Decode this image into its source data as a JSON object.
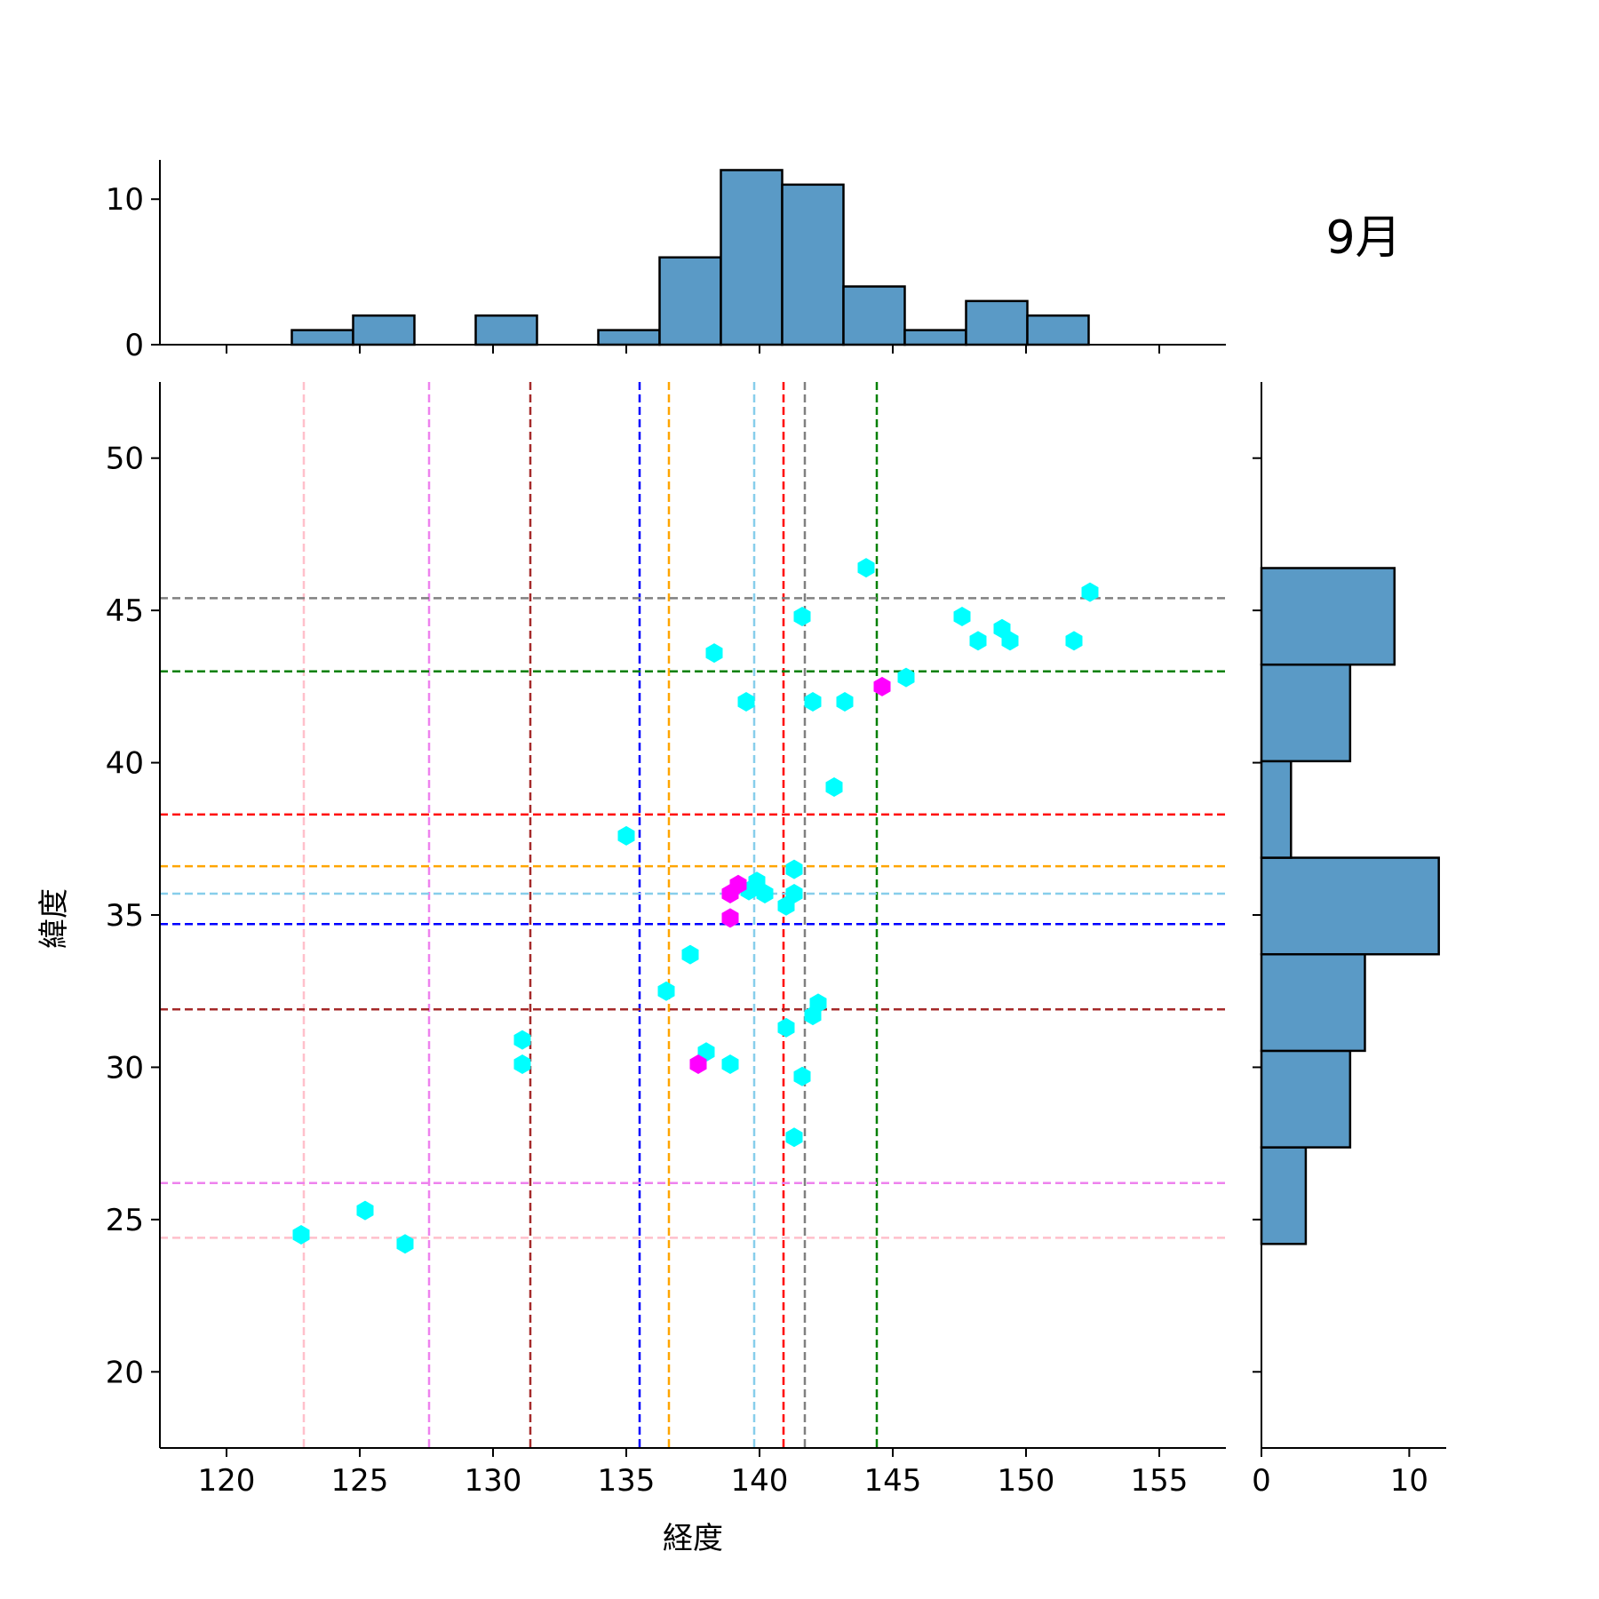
{
  "chart_data": {
    "type": "scatter",
    "title": "9月",
    "xlabel": "経度",
    "ylabel": "緯度",
    "xlim": [
      117.5,
      157.5
    ],
    "ylim": [
      17.5,
      52.5
    ],
    "xticks": [
      120,
      125,
      130,
      135,
      140,
      145,
      150,
      155
    ],
    "yticks": [
      20,
      25,
      30,
      35,
      40,
      45,
      50
    ],
    "grid": false,
    "points": [
      {
        "x": 122.8,
        "y": 24.5,
        "group": "cyan"
      },
      {
        "x": 125.2,
        "y": 25.3,
        "group": "cyan"
      },
      {
        "x": 126.7,
        "y": 24.2,
        "group": "cyan"
      },
      {
        "x": 131.1,
        "y": 30.9,
        "group": "cyan"
      },
      {
        "x": 131.1,
        "y": 30.1,
        "group": "cyan"
      },
      {
        "x": 135.0,
        "y": 37.6,
        "group": "cyan"
      },
      {
        "x": 136.5,
        "y": 32.5,
        "group": "cyan"
      },
      {
        "x": 137.4,
        "y": 33.7,
        "group": "cyan"
      },
      {
        "x": 138.0,
        "y": 30.5,
        "group": "cyan"
      },
      {
        "x": 138.3,
        "y": 43.6,
        "group": "cyan"
      },
      {
        "x": 138.9,
        "y": 30.1,
        "group": "cyan"
      },
      {
        "x": 139.5,
        "y": 42.0,
        "group": "cyan"
      },
      {
        "x": 139.6,
        "y": 35.8,
        "group": "cyan"
      },
      {
        "x": 139.9,
        "y": 36.1,
        "group": "cyan"
      },
      {
        "x": 140.2,
        "y": 35.7,
        "group": "cyan"
      },
      {
        "x": 141.0,
        "y": 31.3,
        "group": "cyan"
      },
      {
        "x": 141.0,
        "y": 35.3,
        "group": "cyan"
      },
      {
        "x": 141.3,
        "y": 36.5,
        "group": "cyan"
      },
      {
        "x": 141.3,
        "y": 35.7,
        "group": "cyan"
      },
      {
        "x": 141.3,
        "y": 27.7,
        "group": "cyan"
      },
      {
        "x": 141.6,
        "y": 29.7,
        "group": "cyan"
      },
      {
        "x": 141.6,
        "y": 44.8,
        "group": "cyan"
      },
      {
        "x": 142.0,
        "y": 42.0,
        "group": "cyan"
      },
      {
        "x": 142.0,
        "y": 31.7,
        "group": "cyan"
      },
      {
        "x": 142.2,
        "y": 32.1,
        "group": "cyan"
      },
      {
        "x": 142.8,
        "y": 39.2,
        "group": "cyan"
      },
      {
        "x": 143.2,
        "y": 42.0,
        "group": "cyan"
      },
      {
        "x": 144.0,
        "y": 46.4,
        "group": "cyan"
      },
      {
        "x": 145.5,
        "y": 42.8,
        "group": "cyan"
      },
      {
        "x": 147.6,
        "y": 44.8,
        "group": "cyan"
      },
      {
        "x": 148.2,
        "y": 44.0,
        "group": "cyan"
      },
      {
        "x": 149.1,
        "y": 44.4,
        "group": "cyan"
      },
      {
        "x": 149.4,
        "y": 44.0,
        "group": "cyan"
      },
      {
        "x": 151.8,
        "y": 44.0,
        "group": "cyan"
      },
      {
        "x": 152.4,
        "y": 45.6,
        "group": "cyan"
      },
      {
        "x": 137.7,
        "y": 30.1,
        "group": "magenta"
      },
      {
        "x": 138.9,
        "y": 34.9,
        "group": "magenta"
      },
      {
        "x": 138.9,
        "y": 35.7,
        "group": "magenta"
      },
      {
        "x": 139.2,
        "y": 36.0,
        "group": "magenta"
      },
      {
        "x": 144.6,
        "y": 42.5,
        "group": "magenta"
      }
    ],
    "point_colors": {
      "cyan": "#00ffff",
      "magenta": "#ff00ff"
    },
    "vlines": [
      {
        "x": 122.9,
        "color": "#ffc0cb"
      },
      {
        "x": 127.6,
        "color": "#ee82ee"
      },
      {
        "x": 131.4,
        "color": "#a52a2a"
      },
      {
        "x": 135.5,
        "color": "#0000ff"
      },
      {
        "x": 136.6,
        "color": "#ffa500"
      },
      {
        "x": 139.8,
        "color": "#87ceeb"
      },
      {
        "x": 140.9,
        "color": "#ff0000"
      },
      {
        "x": 141.7,
        "color": "#808080"
      },
      {
        "x": 144.4,
        "color": "#008000"
      }
    ],
    "hlines": [
      {
        "y": 45.4,
        "color": "#808080"
      },
      {
        "y": 43.0,
        "color": "#008000"
      },
      {
        "y": 38.3,
        "color": "#ff0000"
      },
      {
        "y": 36.6,
        "color": "#ffa500"
      },
      {
        "y": 35.7,
        "color": "#87ceeb"
      },
      {
        "y": 34.7,
        "color": "#0000ff"
      },
      {
        "y": 31.9,
        "color": "#a52a2a"
      },
      {
        "y": 26.2,
        "color": "#ee82ee"
      },
      {
        "y": 24.4,
        "color": "#ffc0cb"
      }
    ],
    "x_histogram": {
      "bin_edges": [
        122.45,
        124.75,
        127.05,
        129.35,
        131.65,
        133.95,
        136.25,
        138.55,
        140.85,
        143.15,
        145.45,
        147.75,
        150.05,
        152.35
      ],
      "counts": [
        1,
        2,
        0,
        2,
        0,
        1,
        6,
        12,
        11,
        4,
        1,
        3,
        2
      ],
      "ylim": [
        0,
        12.7
      ],
      "yticks": [
        0,
        10
      ],
      "bar_color": "#5a9ac6"
    },
    "y_histogram": {
      "bin_edges": [
        24.2,
        27.37,
        30.54,
        33.71,
        36.88,
        40.05,
        43.22,
        46.39
      ],
      "counts": [
        3,
        6,
        7,
        12,
        2,
        6,
        9
      ],
      "xlim": [
        0,
        12.5
      ],
      "xticks": [
        0,
        10
      ],
      "bar_color": "#5a9ac6"
    }
  }
}
